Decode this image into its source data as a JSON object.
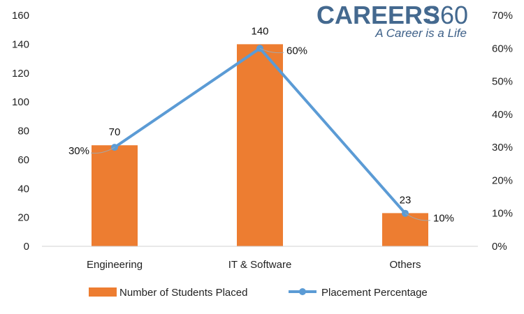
{
  "brand": {
    "name": "CAREERS",
    "number": "360",
    "tagline": "A Career is a Life"
  },
  "colors": {
    "bar": "#ed7d31",
    "line": "#5b9bd5",
    "brand": "#44698f"
  },
  "chart_data": {
    "type": "bar",
    "title": "",
    "xlabel": "",
    "ylabel": "",
    "y2label": "",
    "categories": [
      "Engineering",
      "IT & Software",
      "Others"
    ],
    "ylim": [
      0,
      160
    ],
    "y_ticks": [
      "0",
      "20",
      "40",
      "60",
      "80",
      "100",
      "120",
      "140",
      "160"
    ],
    "y2lim": [
      0,
      0.7
    ],
    "y2_ticks": [
      "0%",
      "10%",
      "20%",
      "30%",
      "40%",
      "50%",
      "60%",
      "70%"
    ],
    "grid": false,
    "legend_position": "bottom",
    "series": [
      {
        "name": "Number of Students Placed",
        "type": "bar",
        "axis": "left",
        "values": [
          70,
          140,
          23
        ],
        "labels": [
          "70",
          "140",
          "23"
        ]
      },
      {
        "name": "Placement Percentage",
        "type": "line",
        "axis": "right",
        "values": [
          0.3,
          0.6,
          0.1
        ],
        "labels": [
          "30%",
          "60%",
          "10%"
        ]
      }
    ]
  }
}
